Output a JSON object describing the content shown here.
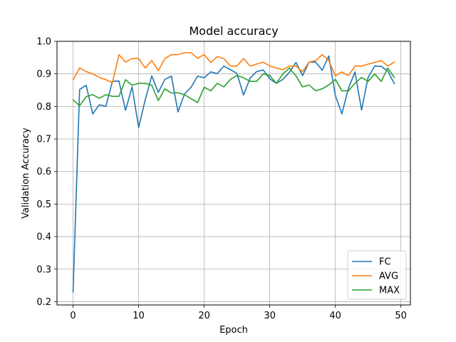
{
  "chart_data": {
    "type": "line",
    "title": "Model accuracy",
    "xlabel": "Epoch",
    "ylabel": "Validation Accuracy",
    "xlim": [
      -2.45,
      51.45
    ],
    "ylim": [
      0.19,
      1.0
    ],
    "xticks": [
      0,
      10,
      20,
      30,
      40,
      50
    ],
    "yticks": [
      0.2,
      0.3,
      0.4,
      0.5,
      0.6,
      0.7,
      0.8,
      0.9,
      1.0
    ],
    "xtick_labels": [
      "0",
      "10",
      "20",
      "30",
      "40",
      "50"
    ],
    "ytick_labels": [
      "0.2",
      "0.3",
      "0.4",
      "0.5",
      "0.6",
      "0.7",
      "0.8",
      "0.9",
      "1.0"
    ],
    "grid": true,
    "legend_position": "lower-right",
    "x": [
      0,
      1,
      2,
      3,
      4,
      5,
      6,
      7,
      8,
      9,
      10,
      11,
      12,
      13,
      14,
      15,
      16,
      17,
      18,
      19,
      20,
      21,
      22,
      23,
      24,
      25,
      26,
      27,
      28,
      29,
      30,
      31,
      32,
      33,
      34,
      35,
      36,
      37,
      38,
      39,
      40,
      41,
      42,
      43,
      44,
      45,
      46,
      47,
      48,
      49
    ],
    "series": [
      {
        "name": "FC",
        "color": "#1f77b4",
        "values": [
          0.23,
          0.852,
          0.865,
          0.777,
          0.805,
          0.8,
          0.877,
          0.878,
          0.788,
          0.86,
          0.735,
          0.82,
          0.894,
          0.843,
          0.883,
          0.893,
          0.783,
          0.838,
          0.859,
          0.893,
          0.888,
          0.906,
          0.901,
          0.924,
          0.913,
          0.901,
          0.835,
          0.887,
          0.907,
          0.912,
          0.885,
          0.871,
          0.883,
          0.905,
          0.935,
          0.895,
          0.936,
          0.936,
          0.911,
          0.955,
          0.834,
          0.777,
          0.856,
          0.906,
          0.789,
          0.889,
          0.924,
          0.923,
          0.909,
          0.87
        ]
      },
      {
        "name": "AVG",
        "color": "#ff7f0e",
        "values": [
          0.882,
          0.918,
          0.907,
          0.9,
          0.889,
          0.882,
          0.873,
          0.959,
          0.936,
          0.947,
          0.947,
          0.918,
          0.941,
          0.91,
          0.947,
          0.959,
          0.959,
          0.965,
          0.965,
          0.948,
          0.959,
          0.935,
          0.953,
          0.947,
          0.924,
          0.924,
          0.947,
          0.924,
          0.93,
          0.936,
          0.924,
          0.918,
          0.913,
          0.924,
          0.924,
          0.907,
          0.936,
          0.941,
          0.959,
          0.941,
          0.894,
          0.906,
          0.895,
          0.924,
          0.924,
          0.93,
          0.935,
          0.941,
          0.924,
          0.936
        ]
      },
      {
        "name": "MAX",
        "color": "#2ca02c",
        "values": [
          0.82,
          0.802,
          0.83,
          0.836,
          0.825,
          0.836,
          0.831,
          0.831,
          0.882,
          0.865,
          0.871,
          0.871,
          0.865,
          0.818,
          0.854,
          0.841,
          0.842,
          0.836,
          0.824,
          0.812,
          0.859,
          0.848,
          0.871,
          0.86,
          0.883,
          0.895,
          0.888,
          0.877,
          0.877,
          0.9,
          0.895,
          0.871,
          0.9,
          0.918,
          0.894,
          0.86,
          0.866,
          0.848,
          0.854,
          0.866,
          0.883,
          0.848,
          0.848,
          0.871,
          0.889,
          0.877,
          0.9,
          0.877,
          0.918,
          0.889
        ]
      }
    ]
  }
}
